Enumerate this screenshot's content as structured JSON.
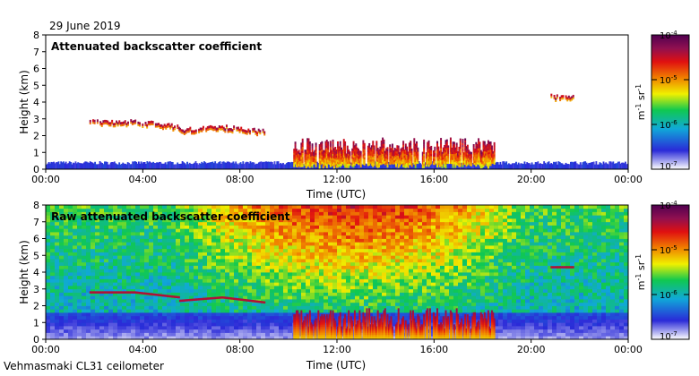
{
  "date_label": "29 June 2019",
  "footer_label": "Vehmasmaki CL31 ceilometer",
  "chart_data": [
    {
      "type": "heatmap",
      "title": "Attenuated backscatter coefficient",
      "xlabel": "Time (UTC)",
      "ylabel": "Height (km)",
      "x_ticks": [
        "00:00",
        "04:00",
        "08:00",
        "12:00",
        "16:00",
        "20:00",
        "00:00"
      ],
      "x_range_hours": [
        0,
        24
      ],
      "y_ticks": [
        "0",
        "1",
        "2",
        "3",
        "4",
        "5",
        "6",
        "7",
        "8"
      ],
      "ylim": [
        0,
        8
      ],
      "colorbar": {
        "ticks": [
          "10^-4",
          "10^-5",
          "10^-6",
          "10^-7"
        ],
        "unit": "m^-1 sr^-1",
        "scale": "log",
        "range": [
          1e-07,
          0.0001
        ]
      },
      "features": [
        {
          "kind": "aerosol_layer",
          "t_start": 0,
          "t_end": 24,
          "top_km": 0.4
        },
        {
          "kind": "cloud_layer",
          "t_start": 1.8,
          "t_end": 5.5,
          "height_km": [
            2.8,
            2.8,
            2.5
          ]
        },
        {
          "kind": "cloud_layer",
          "t_start": 5.5,
          "t_end": 9.0,
          "height_km": [
            2.3,
            2.5,
            2.2
          ]
        },
        {
          "kind": "cloud_layer",
          "t_start": 20.8,
          "t_end": 21.7,
          "height_km": [
            4.3,
            4.3
          ]
        },
        {
          "kind": "convective_clouds",
          "t_start": 10.2,
          "t_end": 18.5,
          "top_km": 1.8
        }
      ]
    },
    {
      "type": "heatmap",
      "title": "Raw attenuated backscatter coefficient",
      "xlabel": "Time (UTC)",
      "ylabel": "Height (km)",
      "x_ticks": [
        "00:00",
        "04:00",
        "08:00",
        "12:00",
        "16:00",
        "20:00",
        "00:00"
      ],
      "x_range_hours": [
        0,
        24
      ],
      "y_ticks": [
        "0",
        "1",
        "2",
        "3",
        "4",
        "5",
        "6",
        "7",
        "8"
      ],
      "ylim": [
        0,
        8
      ],
      "colorbar": {
        "ticks": [
          "10^-4",
          "10^-5",
          "10^-6",
          "10^-7"
        ],
        "unit": "m^-1 sr^-1",
        "scale": "log",
        "range": [
          1e-07,
          0.0001
        ]
      }
    }
  ]
}
